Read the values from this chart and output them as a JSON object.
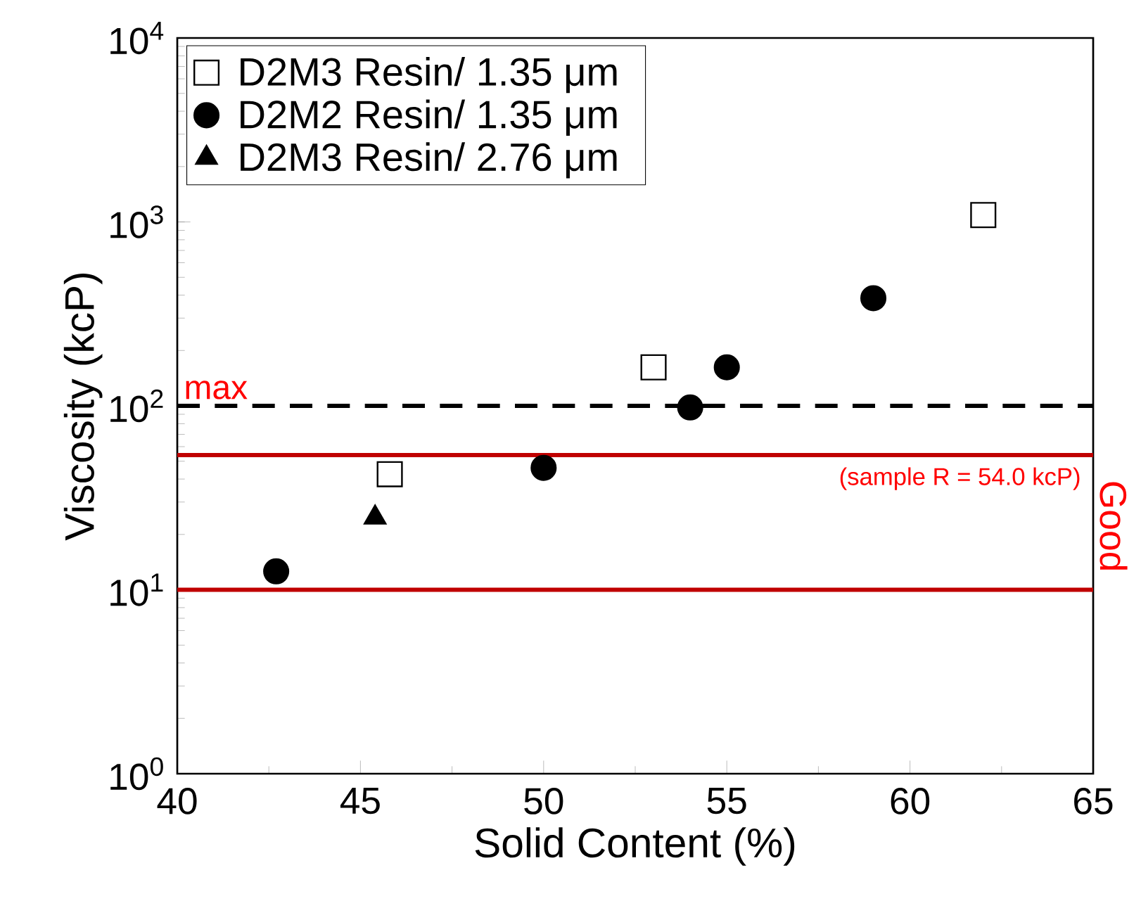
{
  "chart_data": {
    "type": "scatter",
    "xlabel": "Solid Content (%)",
    "ylabel": "Viscosity   (kcP)",
    "xlim": [
      40,
      65
    ],
    "xticks": [
      40,
      45,
      50,
      55,
      60,
      65
    ],
    "ylim": [
      1,
      10000
    ],
    "log": "y",
    "yticks": [
      {
        "value": 1,
        "label": "10$^{0}$"
      },
      {
        "value": 10,
        "label": "10$^{1}$"
      },
      {
        "value": 100,
        "label": "10$^{2}$"
      },
      {
        "value": 1000,
        "label": "10$^{3}$"
      },
      {
        "value": 10000,
        "label": "10$^{4}$"
      }
    ],
    "legend": "top left",
    "series": [
      {
        "name": "D2M3 Resin/ 1.35 μm",
        "color": "#000000",
        "marker": "square",
        "x": [
          45.8,
          53,
          62
        ],
        "values": [
          42.5,
          162,
          1090
        ]
      },
      {
        "name": "D2M2 Resin/ 1.35 μm",
        "color": "#000000",
        "marker": "circle",
        "x": [
          42.7,
          50,
          54,
          55,
          59
        ],
        "values": [
          12.6,
          46,
          98,
          162,
          385
        ]
      },
      {
        "name": "D2M3 Resin/ 2.76 μm",
        "color": "#000000",
        "marker": "triangle",
        "x": [
          45.4
        ],
        "values": [
          24.7
        ]
      }
    ],
    "ref_lines": [
      {
        "axis": "y",
        "value": 100,
        "label": "max",
        "color": "#000000",
        "line_style": "dashed"
      },
      {
        "axis": "y",
        "value": 54,
        "label": "(sample R = 54.0 kcP)",
        "color": "#c00000",
        "line_style": "solid"
      },
      {
        "axis": "y",
        "value": 10,
        "color": "#c00000",
        "line_style": "solid"
      }
    ],
    "annotations": [
      "Good"
    ]
  }
}
